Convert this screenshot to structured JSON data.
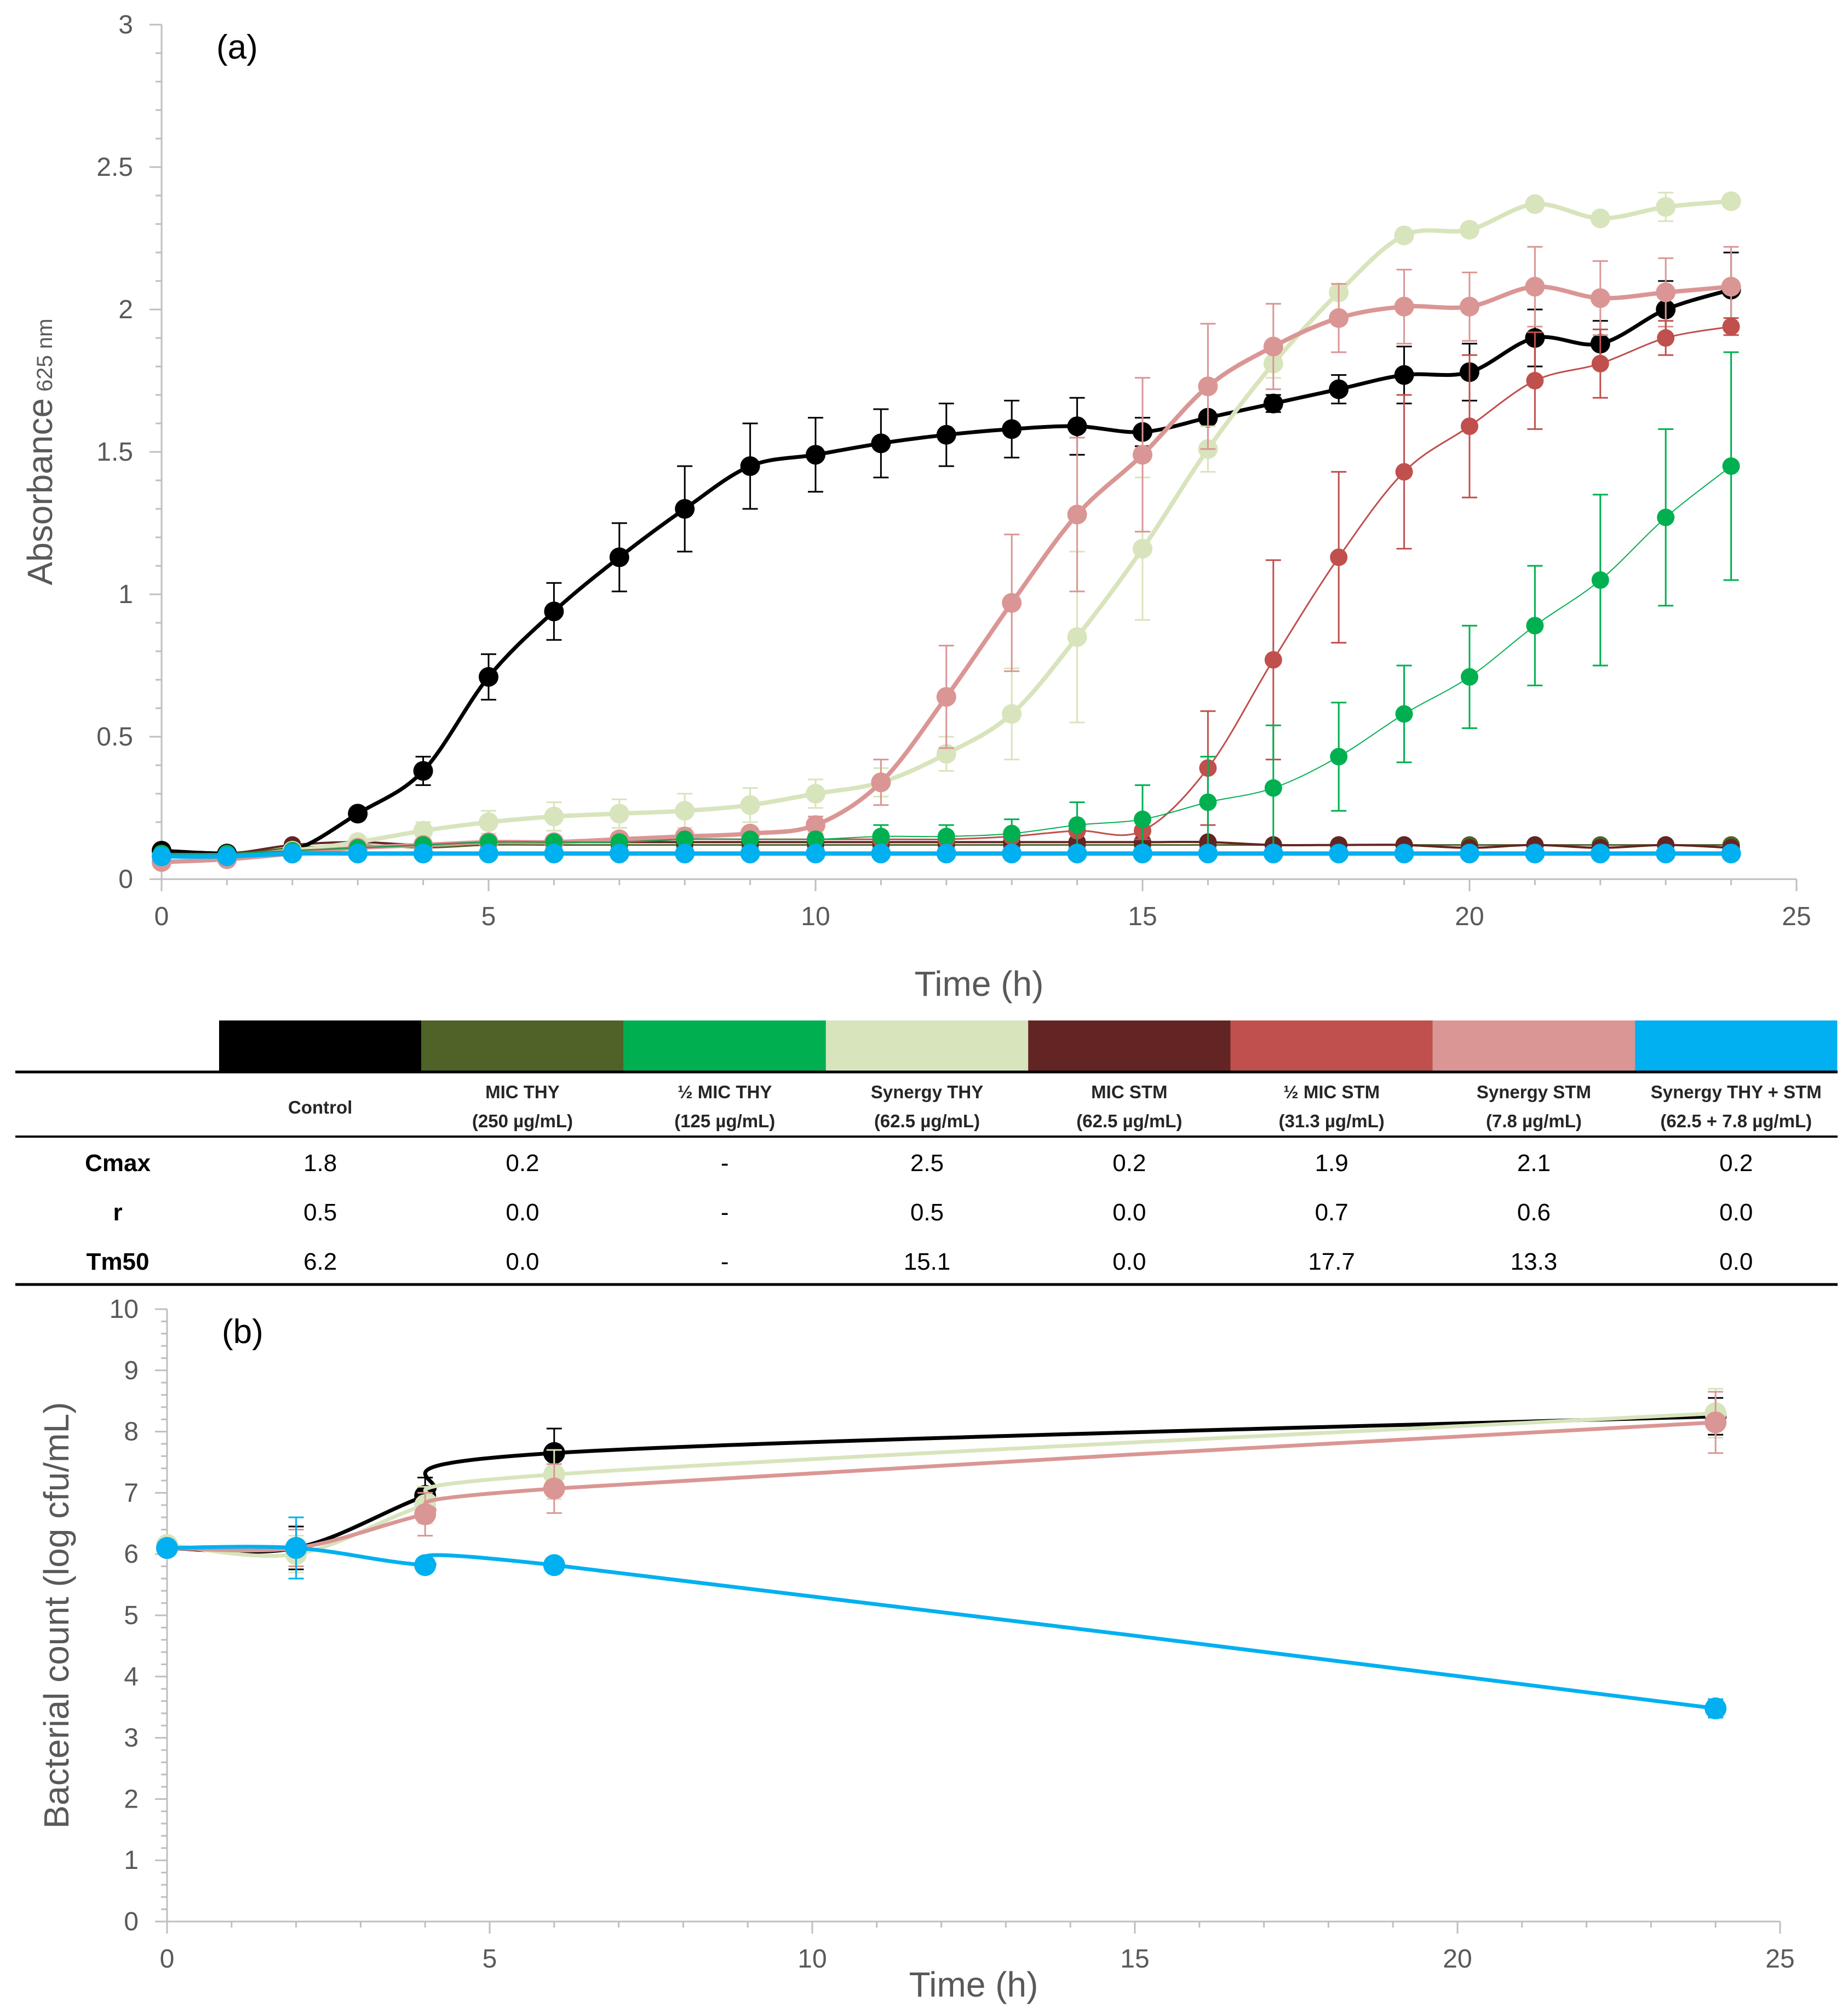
{
  "chart_data": [
    {
      "type": "line",
      "panel_label": "(a)",
      "xlabel": "Time (h)",
      "ylabel": "Absorbance",
      "ylabel_subscript": "625 nm",
      "xlim": [
        0,
        25
      ],
      "ylim": [
        0,
        3
      ],
      "xticks": [
        "0",
        "5",
        "10",
        "15",
        "20",
        "25"
      ],
      "yticks": [
        "0",
        "0.5",
        "1",
        "1.5",
        "2",
        "2.5",
        "3"
      ],
      "x": [
        0,
        1,
        2,
        3,
        4,
        5,
        6,
        7,
        8,
        9,
        10,
        11,
        12,
        13,
        14,
        15,
        16,
        17,
        18,
        19,
        20,
        21,
        22,
        23,
        24
      ],
      "series": [
        {
          "name": "MIC THY",
          "color": "#4f6228",
          "width": 3,
          "values": [
            0.1,
            0.09,
            0.11,
            0.12,
            0.11,
            0.12,
            0.12,
            0.12,
            0.12,
            0.12,
            0.12,
            0.12,
            0.12,
            0.12,
            0.12,
            0.12,
            0.12,
            0.12,
            0.12,
            0.12,
            0.12,
            0.12,
            0.12,
            0.12,
            0.12
          ],
          "errors": []
        },
        {
          "name": "MIC STM",
          "color": "#632523",
          "width": 4,
          "values": [
            0.1,
            0.09,
            0.12,
            0.13,
            0.12,
            0.13,
            0.13,
            0.13,
            0.13,
            0.13,
            0.13,
            0.13,
            0.13,
            0.13,
            0.13,
            0.13,
            0.13,
            0.12,
            0.12,
            0.12,
            0.11,
            0.12,
            0.11,
            0.12,
            0.11
          ],
          "errors": []
        },
        {
          "name": "Control",
          "color": "#000000",
          "width": 7,
          "values": [
            0.1,
            0.09,
            0.1,
            0.23,
            0.38,
            0.71,
            0.94,
            1.13,
            1.3,
            1.45,
            1.49,
            1.53,
            1.56,
            1.58,
            1.59,
            1.57,
            1.62,
            1.67,
            1.72,
            1.77,
            1.78,
            1.9,
            1.88,
            2.0,
            2.07
          ],
          "errors": [
            0.01,
            0.01,
            0.01,
            0.02,
            0.05,
            0.08,
            0.1,
            0.12,
            0.15,
            0.15,
            0.13,
            0.12,
            0.11,
            0.1,
            0.1,
            0.05,
            0.02,
            0.03,
            0.05,
            0.1,
            0.1,
            0.1,
            0.08,
            0.1,
            0.13
          ]
        },
        {
          "name": "Synergy THY",
          "color": "#d8e4bc",
          "width": 8,
          "values": [
            0.08,
            0.08,
            0.1,
            0.13,
            0.17,
            0.2,
            0.22,
            0.23,
            0.24,
            0.26,
            0.3,
            0.34,
            0.44,
            0.58,
            0.85,
            1.16,
            1.51,
            1.81,
            2.06,
            2.26,
            2.28,
            2.37,
            2.32,
            2.36,
            2.38
          ],
          "errors": [
            0,
            0,
            0,
            0.02,
            0.03,
            0.04,
            0.05,
            0.05,
            0.06,
            0.06,
            0.05,
            0.05,
            0.06,
            0.16,
            0.3,
            0.25,
            0.08,
            0.05,
            0.02,
            0.02,
            0.02,
            0.02,
            0.02,
            0.05,
            0.02
          ]
        },
        {
          "name": "Synergy STM",
          "color": "#da9694",
          "width": 8,
          "values": [
            0.06,
            0.07,
            0.09,
            0.11,
            0.12,
            0.13,
            0.13,
            0.14,
            0.15,
            0.16,
            0.19,
            0.34,
            0.64,
            0.97,
            1.28,
            1.49,
            1.73,
            1.87,
            1.97,
            2.01,
            2.01,
            2.08,
            2.04,
            2.06,
            2.08
          ],
          "errors": [
            0,
            0,
            0,
            0.02,
            0.02,
            0.02,
            0.02,
            0.02,
            0.02,
            0.02,
            0.03,
            0.08,
            0.18,
            0.24,
            0.27,
            0.27,
            0.22,
            0.15,
            0.12,
            0.13,
            0.12,
            0.14,
            0.13,
            0.12,
            0.14
          ]
        },
        {
          "name": "½ MIC STM",
          "color": "#c0504d",
          "width": 3,
          "values": [
            0.09,
            0.09,
            0.1,
            0.11,
            0.12,
            0.13,
            0.13,
            0.13,
            0.14,
            0.14,
            0.14,
            0.14,
            0.14,
            0.15,
            0.17,
            0.17,
            0.39,
            0.77,
            1.13,
            1.43,
            1.59,
            1.75,
            1.81,
            1.9,
            1.94
          ],
          "errors": [
            0,
            0,
            0,
            0,
            0,
            0,
            0,
            0,
            0,
            0,
            0,
            0,
            0,
            0,
            0,
            0.03,
            0.2,
            0.35,
            0.3,
            0.27,
            0.25,
            0.17,
            0.12,
            0.06,
            0.03
          ]
        },
        {
          "name": "½ MIC THY",
          "color": "#00b050",
          "width": 2,
          "values": [
            0.09,
            0.09,
            0.1,
            0.11,
            0.12,
            0.13,
            0.13,
            0.13,
            0.14,
            0.14,
            0.14,
            0.15,
            0.15,
            0.16,
            0.19,
            0.21,
            0.27,
            0.32,
            0.43,
            0.58,
            0.71,
            0.89,
            1.05,
            1.27,
            1.45
          ],
          "errors": [
            0,
            0,
            0,
            0,
            0,
            0,
            0,
            0,
            0,
            0,
            0,
            0.04,
            0.04,
            0.05,
            0.08,
            0.12,
            0.16,
            0.22,
            0.19,
            0.17,
            0.18,
            0.21,
            0.3,
            0.31,
            0.4
          ]
        },
        {
          "name": "Synergy THY + STM",
          "color": "#00b0f0",
          "width": 8,
          "values": [
            0.08,
            0.08,
            0.09,
            0.09,
            0.09,
            0.09,
            0.09,
            0.09,
            0.09,
            0.09,
            0.09,
            0.09,
            0.09,
            0.09,
            0.09,
            0.09,
            0.09,
            0.09,
            0.09,
            0.09,
            0.09,
            0.09,
            0.09,
            0.09,
            0.09
          ],
          "errors": []
        }
      ]
    },
    {
      "type": "line",
      "panel_label": "(b)",
      "xlabel": "Time (h)",
      "ylabel": "Bacterial count (log cfu/mL)",
      "xlim": [
        0,
        25
      ],
      "ylim": [
        0,
        10
      ],
      "xticks": [
        "0",
        "5",
        "10",
        "15",
        "20",
        "25"
      ],
      "yticks": [
        "0",
        "1",
        "2",
        "3",
        "4",
        "5",
        "6",
        "7",
        "8",
        "9",
        "10"
      ],
      "x": [
        0,
        2,
        4,
        6,
        24
      ],
      "series": [
        {
          "name": "Control",
          "color": "#000000",
          "width": 7,
          "values": [
            6.1,
            6.1,
            6.95,
            7.65,
            8.25
          ],
          "errors": [
            0.1,
            0.35,
            0.3,
            0.4,
            0.3
          ]
        },
        {
          "name": "Synergy THY",
          "color": "#d8e4bc",
          "width": 7,
          "values": [
            6.15,
            6.0,
            6.8,
            7.3,
            8.3
          ],
          "errors": [
            0.1,
            0.3,
            0.3,
            0.4,
            0.4
          ]
        },
        {
          "name": "Synergy STM",
          "color": "#da9694",
          "width": 7,
          "values": [
            6.1,
            6.1,
            6.65,
            7.07,
            8.15
          ],
          "errors": [
            0.1,
            0.3,
            0.35,
            0.4,
            0.5
          ]
        },
        {
          "name": "Synergy THY + STM",
          "color": "#00b0f0",
          "width": 7,
          "values": [
            6.1,
            6.1,
            5.82,
            5.82,
            3.48
          ],
          "errors": [
            0.1,
            0.5,
            0,
            0,
            0.15
          ]
        }
      ]
    }
  ],
  "table": {
    "swatch_colors": [
      "#000000",
      "#4f6228",
      "#00b050",
      "#d8e4bc",
      "#632523",
      "#c0504d",
      "#da9694",
      "#00b0f0"
    ],
    "columns": [
      {
        "line1": "Control",
        "line2": ""
      },
      {
        "line1": "MIC THY",
        "line2": "(250 µg/mL)"
      },
      {
        "line1": "½ MIC THY",
        "line2": "(125 µg/mL)"
      },
      {
        "line1": "Synergy THY",
        "line2": "(62.5 µg/mL)"
      },
      {
        "line1": "MIC STM",
        "line2": "(62.5 µg/mL)"
      },
      {
        "line1": "½ MIC STM",
        "line2": "(31.3 µg/mL)"
      },
      {
        "line1": "Synergy STM",
        "line2": "(7.8 µg/mL)"
      },
      {
        "line1": "Synergy THY + STM",
        "line2": "(62.5 + 7.8 µg/mL)"
      }
    ],
    "rows": [
      {
        "label": "Cmax",
        "values": [
          "1.8",
          "0.2",
          "-",
          "2.5",
          "0.2",
          "1.9",
          "2.1",
          "0.2"
        ]
      },
      {
        "label": "r",
        "values": [
          "0.5",
          "0.0",
          "-",
          "0.5",
          "0.0",
          "0.7",
          "0.6",
          "0.0"
        ]
      },
      {
        "label": "Tm50",
        "values": [
          "6.2",
          "0.0",
          "-",
          "15.1",
          "0.0",
          "17.7",
          "13.3",
          "0.0"
        ]
      }
    ]
  }
}
